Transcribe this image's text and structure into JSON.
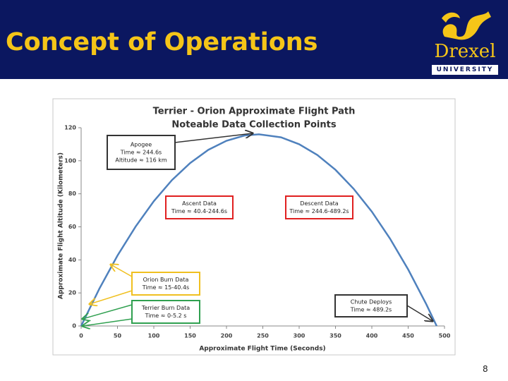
{
  "slide": {
    "title": "Concept of Operations",
    "logo_name": "Drexel",
    "logo_sub": "UNIVERSITY",
    "page_number": "8"
  },
  "chart_data": {
    "type": "line",
    "title": "Terrier - Orion Approximate Flight Path",
    "subtitle": "Noteable Data Collection Points",
    "x_label": "Approximate Flight Time (Seconds)",
    "y_label": "Approximate Flight Altitude (Kilometers)",
    "x": [
      0,
      25,
      50,
      75,
      100,
      125,
      150,
      175,
      200,
      225,
      244.6,
      275,
      300,
      325,
      350,
      375,
      400,
      425,
      450,
      475,
      489.2
    ],
    "series": [
      {
        "name": "Flight Path",
        "color": "#4f81bd",
        "values": [
          0,
          22.5,
          42.6,
          60.2,
          75.5,
          88.3,
          98.6,
          106.6,
          112.1,
          115.3,
          116,
          114.2,
          110.0,
          103.5,
          94.5,
          83.0,
          69.2,
          52.9,
          34.2,
          13.1,
          0
        ]
      }
    ],
    "xlim": [
      0,
      500
    ],
    "xticks": [
      0,
      50,
      100,
      150,
      200,
      250,
      300,
      350,
      400,
      450,
      500
    ],
    "ylim": [
      0,
      120
    ],
    "yticks": [
      0,
      20,
      40,
      60,
      80,
      100,
      120
    ],
    "annotations": [
      {
        "lines": [
          "Apogee",
          "Time ≈ 244.6s",
          "Altitude ≈ 116 km"
        ],
        "color": "#333333"
      },
      {
        "lines": [
          "Ascent Data",
          "Time ≈ 40.4-244.6s"
        ],
        "color": "#e02020"
      },
      {
        "lines": [
          "Descent Data",
          "Time ≈ 244.6-489.2s"
        ],
        "color": "#e02020"
      },
      {
        "lines": [
          "Orion Burn Data",
          "Time ≈ 15-40.4s"
        ],
        "color": "#f0c020"
      },
      {
        "lines": [
          "Terrier Burn Data",
          "Time ≈ 0-5.2 s"
        ],
        "color": "#30a050"
      },
      {
        "lines": [
          "Chute Deploys",
          "Time ≈ 489.2s"
        ],
        "color": "#333333"
      }
    ]
  }
}
